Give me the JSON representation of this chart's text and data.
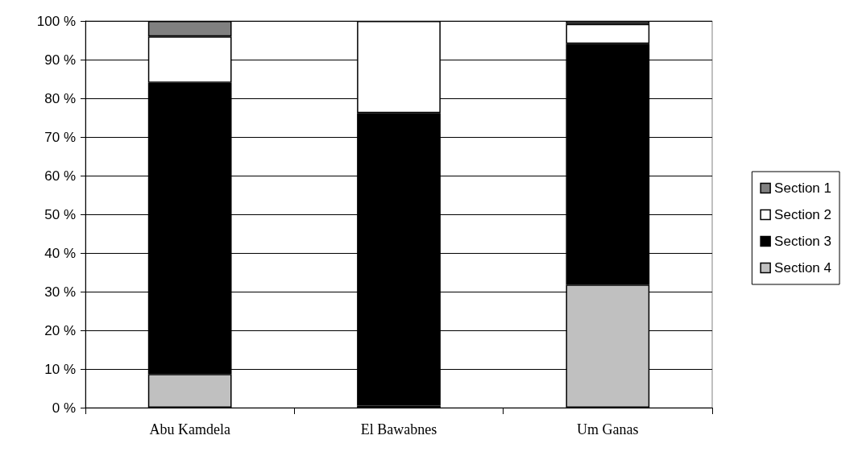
{
  "chart_data": {
    "type": "bar",
    "stacked": true,
    "categories": [
      "Abu Kamdela",
      "El Bawabnes",
      "Um Ganas"
    ],
    "series": [
      {
        "name": "Section 4",
        "color": "#c0c0c0",
        "values": [
          8.7,
          0.5,
          31.8
        ]
      },
      {
        "name": "Section 3",
        "color": "#000000",
        "values": [
          75.3,
          75.7,
          62.3
        ]
      },
      {
        "name": "Section 2",
        "color": "#ffffff",
        "values": [
          12.0,
          23.8,
          5.1
        ]
      },
      {
        "name": "Section 1",
        "color": "#808080",
        "values": [
          4.0,
          0,
          0.8
        ]
      }
    ],
    "ylim": [
      0,
      100
    ],
    "yticks": [
      {
        "value": 0,
        "label": "0 %"
      },
      {
        "value": 10,
        "label": "10 %"
      },
      {
        "value": 20,
        "label": "20 %"
      },
      {
        "value": 30,
        "label": "30 %"
      },
      {
        "value": 40,
        "label": "40 %"
      },
      {
        "value": 50,
        "label": "50 %"
      },
      {
        "value": 60,
        "label": "60 %"
      },
      {
        "value": 70,
        "label": "70 %"
      },
      {
        "value": 80,
        "label": "80 %"
      },
      {
        "value": 90,
        "label": "90 %"
      },
      {
        "value": 100,
        "label": "100 %"
      }
    ],
    "grid": "y",
    "legend": "right"
  }
}
